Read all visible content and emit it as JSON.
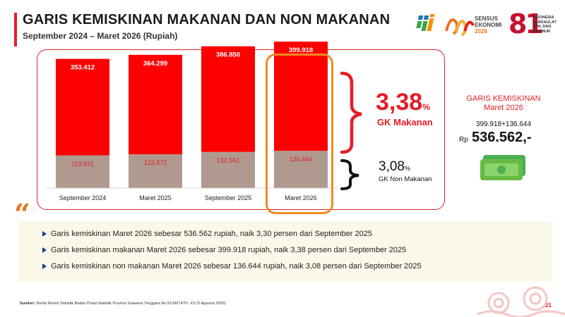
{
  "header": {
    "title": "GARIS KEMISKINAN MAKANAN DAN NON MAKANAN",
    "subtitle": "September 2024 – Maret 2026 (Rupiah)"
  },
  "logos": {
    "se_line1": "SENSUS",
    "se_line2": "EKONOMI",
    "se_line3": "2026",
    "anniv_number": "81",
    "anniv_line1": "INDONESIA",
    "anniv_line2": "BERDAULAT",
    "anniv_line3": "ADIL DAN",
    "anniv_line4": "MAKMUR"
  },
  "chart_data": {
    "type": "bar",
    "stacked": true,
    "categories": [
      "September 2024",
      "Maret 2025",
      "September 2025",
      "Maret 2026"
    ],
    "series": [
      {
        "name": "GK Non Makanan",
        "values": [
          119931,
          123872,
          132561,
          136644
        ],
        "labels": [
          "119.931",
          "123.872",
          "132.561",
          "136.644"
        ],
        "color": "#b09a90"
      },
      {
        "name": "GK Makanan",
        "values": [
          353412,
          364299,
          386850,
          399918
        ],
        "labels": [
          "353.412",
          "364.299",
          "386.850",
          "399.918"
        ],
        "color": "#ff0000"
      }
    ],
    "ylim": [
      0,
      560000
    ],
    "highlight_category": "Maret 2026",
    "grid": false,
    "legend": "none"
  },
  "growth": {
    "makanan_value": "3,38",
    "makanan_sign": "%",
    "makanan_label": "GK Makanan",
    "nonmakanan_value": "3,08",
    "nonmakanan_sign": "%",
    "nonmakanan_label": "GK Non Makanan"
  },
  "info_card": {
    "title_line1": "GARIS KEMISKINAN",
    "title_line2": "Maret 2026",
    "sum_text": "399.918+136.644",
    "currency": "Rp",
    "total": "536.562,-"
  },
  "quote_mark": "“",
  "bullets": [
    "Garis kemiskinan Maret 2026 sebesar 536.562 rupiah, naik 3,30 persen dari September 2025",
    "Garis kemiskinan makanan Maret 2026 sebesar 399.918 rupiah, naik 3,38 persen dari September 2025",
    "Garis kemiskinan non makanan Maret 2026 sebesar 136.644 rupiah, naik 3,08 persen dari September 2025"
  ],
  "footer": {
    "source_label": "Sumber:",
    "source_text": "Berita Resmi Statistik Badan Pusat Statistik Provinsi Sulawesi Tenggara No.51/08/74/Th. XX (5 Agustus 2026)",
    "page_number": "21"
  },
  "colors": {
    "accent_red": "#e41e26",
    "highlight_orange": "#f08a24",
    "bar_food": "#ff0000",
    "bar_nonfood": "#b09a90",
    "bullet_blue": "#1f3c88",
    "panel_bg": "#fbf7e9"
  },
  "icons": [
    "bps-logo-icon",
    "sensus-ekonomi-logo-icon",
    "hut-ri-81-logo-icon",
    "money-icon",
    "bullet-triangle-icon",
    "batik-ornament-icon"
  ]
}
